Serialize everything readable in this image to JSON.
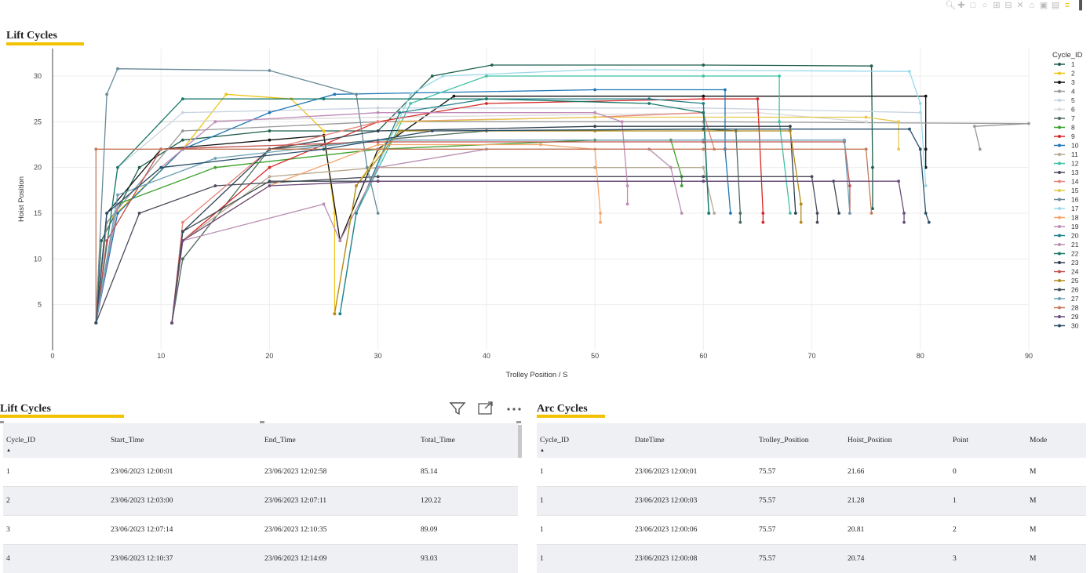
{
  "chart": {
    "title": "Lift Cycles",
    "legend_title": "Cycle_ID",
    "x_axis_title": "Trolley Position / S",
    "y_axis_title": "Hoist Position",
    "x_ticks": [
      "0",
      "10",
      "20",
      "30",
      "40",
      "50",
      "60",
      "70",
      "80",
      "90"
    ],
    "y_ticks": [
      "5",
      "10",
      "15",
      "20",
      "25",
      "30"
    ],
    "modebar_icons": [
      "zoom-icon",
      "pan-icon",
      "box-select-icon",
      "lasso-icon",
      "zoom-in-icon",
      "zoom-out-icon",
      "autoscale-icon",
      "reset-axes-icon",
      "camera-icon",
      "compare-icon",
      "spike-icon",
      "logo-icon"
    ]
  },
  "chart_data": {
    "type": "line",
    "title": "Lift Cycles",
    "xlabel": "Trolley Position / S",
    "ylabel": "Hoist Position",
    "xlim": [
      0,
      90
    ],
    "ylim": [
      0,
      33
    ],
    "legend_title": "Cycle_ID",
    "legend_position": "right",
    "grid": true,
    "series": [
      {
        "name": "1",
        "color": "#1f5f4f",
        "values": [
          [
            4,
            3
          ],
          [
            4.5,
            12
          ],
          [
            8,
            20
          ],
          [
            12,
            23
          ],
          [
            20,
            24
          ],
          [
            30,
            24
          ],
          [
            35,
            30
          ],
          [
            40.5,
            31.2
          ],
          [
            60,
            31.2
          ],
          [
            75.5,
            31.1
          ],
          [
            75.6,
            20
          ],
          [
            75.6,
            15.5
          ]
        ]
      },
      {
        "name": "2",
        "color": "#f0c419",
        "values": [
          [
            4,
            3
          ],
          [
            5,
            14
          ],
          [
            12,
            22
          ],
          [
            16,
            28
          ],
          [
            22,
            27.5
          ],
          [
            25,
            24
          ],
          [
            26,
            15
          ],
          [
            26,
            4
          ]
        ]
      },
      {
        "name": "3",
        "color": "#111111",
        "values": [
          [
            4,
            3
          ],
          [
            5,
            15
          ],
          [
            10,
            22
          ],
          [
            20,
            23
          ],
          [
            25,
            23.5
          ],
          [
            26.5,
            12
          ],
          [
            30,
            22
          ],
          [
            37,
            27.8
          ],
          [
            60,
            27.8
          ],
          [
            80.5,
            27.8
          ],
          [
            80.5,
            22
          ],
          [
            80.5,
            20
          ]
        ]
      },
      {
        "name": "4",
        "color": "#999999",
        "values": [
          [
            4,
            3
          ],
          [
            5,
            14
          ],
          [
            12,
            24
          ],
          [
            30,
            25
          ],
          [
            60,
            25
          ],
          [
            90,
            24.8
          ],
          [
            85,
            24.5
          ],
          [
            85.5,
            22
          ]
        ]
      },
      {
        "name": "5",
        "color": "#c9d3e0",
        "values": [
          [
            4,
            3
          ],
          [
            6,
            20
          ],
          [
            12,
            26
          ],
          [
            30,
            26.5
          ],
          [
            60,
            26.5
          ],
          [
            80,
            26
          ]
        ]
      },
      {
        "name": "6",
        "color": "#d9d9d9",
        "values": [
          [
            4,
            3
          ],
          [
            6,
            20
          ],
          [
            10,
            25
          ],
          [
            30,
            25.5
          ],
          [
            65,
            26
          ],
          [
            75,
            25
          ]
        ]
      },
      {
        "name": "7",
        "color": "#4d6b5a",
        "values": [
          [
            11,
            3
          ],
          [
            12,
            10
          ],
          [
            20,
            22
          ],
          [
            40,
            24
          ],
          [
            60,
            24.2
          ],
          [
            63,
            24
          ],
          [
            63.4,
            15
          ],
          [
            63.4,
            14
          ]
        ]
      },
      {
        "name": "8",
        "color": "#3aa02a",
        "values": [
          [
            4,
            3
          ],
          [
            6,
            16
          ],
          [
            15,
            20
          ],
          [
            30,
            22
          ],
          [
            50,
            23
          ],
          [
            57,
            23
          ],
          [
            58,
            19
          ],
          [
            58,
            18
          ]
        ]
      },
      {
        "name": "9",
        "color": "#d62728",
        "values": [
          [
            11,
            3
          ],
          [
            12,
            12
          ],
          [
            20,
            20
          ],
          [
            30,
            25
          ],
          [
            40,
            27
          ],
          [
            60,
            27.5
          ],
          [
            65,
            27.5
          ],
          [
            65.5,
            15
          ],
          [
            65.5,
            14
          ]
        ]
      },
      {
        "name": "10",
        "color": "#1f77b4",
        "values": [
          [
            4,
            3
          ],
          [
            6,
            15
          ],
          [
            12,
            22
          ],
          [
            20,
            26
          ],
          [
            26,
            28
          ],
          [
            50,
            28.5
          ],
          [
            62,
            28.5
          ],
          [
            62,
            22
          ],
          [
            62.5,
            15
          ]
        ]
      },
      {
        "name": "11",
        "color": "#b6a88f",
        "values": [
          [
            11,
            3
          ],
          [
            12,
            12
          ],
          [
            20,
            19
          ],
          [
            30,
            20
          ],
          [
            50,
            20
          ],
          [
            60,
            20
          ],
          [
            61,
            15
          ]
        ]
      },
      {
        "name": "12",
        "color": "#3fc1a5",
        "values": [
          [
            26.5,
            4
          ],
          [
            28,
            15
          ],
          [
            33,
            27
          ],
          [
            40,
            30
          ],
          [
            60,
            30
          ],
          [
            67,
            30
          ],
          [
            67,
            25
          ],
          [
            68,
            15
          ]
        ]
      },
      {
        "name": "13",
        "color": "#4a4a5a",
        "values": [
          [
            4,
            3
          ],
          [
            8,
            15
          ],
          [
            15,
            18
          ],
          [
            30,
            19
          ],
          [
            60,
            19
          ],
          [
            70,
            19
          ],
          [
            70.5,
            15
          ],
          [
            70.5,
            14
          ]
        ]
      },
      {
        "name": "14",
        "color": "#e8857a",
        "values": [
          [
            11,
            3
          ],
          [
            12,
            14
          ],
          [
            20,
            22
          ],
          [
            30,
            25
          ],
          [
            50,
            25.5
          ],
          [
            60,
            26
          ],
          [
            61,
            22
          ]
        ]
      },
      {
        "name": "15",
        "color": "#e6c84a",
        "values": [
          [
            26,
            4
          ],
          [
            28,
            18
          ],
          [
            32,
            25
          ],
          [
            50,
            25.5
          ],
          [
            75,
            25.5
          ],
          [
            78,
            25
          ],
          [
            78,
            22
          ]
        ]
      },
      {
        "name": "16",
        "color": "#6a8a99",
        "values": [
          [
            4,
            3
          ],
          [
            5,
            28
          ],
          [
            6,
            30.8
          ],
          [
            20,
            30.6
          ],
          [
            28,
            28
          ],
          [
            29,
            20
          ],
          [
            30,
            15
          ]
        ]
      },
      {
        "name": "17",
        "color": "#9ad9ea",
        "values": [
          [
            26.5,
            4
          ],
          [
            28,
            15
          ],
          [
            33,
            28
          ],
          [
            36,
            30
          ],
          [
            50,
            30.7
          ],
          [
            79,
            30.5
          ],
          [
            80,
            27
          ],
          [
            80.5,
            18
          ]
        ]
      },
      {
        "name": "18",
        "color": "#f5a56b",
        "values": [
          [
            11,
            3
          ],
          [
            12,
            12
          ],
          [
            20,
            18
          ],
          [
            30,
            22.5
          ],
          [
            45,
            22.5
          ],
          [
            50,
            22
          ],
          [
            50.5,
            15
          ],
          [
            50.5,
            14
          ]
        ]
      },
      {
        "name": "19",
        "color": "#c08ab8",
        "values": [
          [
            4,
            3
          ],
          [
            6,
            16
          ],
          [
            15,
            25
          ],
          [
            30,
            26
          ],
          [
            50,
            26
          ],
          [
            52.5,
            25
          ],
          [
            53,
            18
          ],
          [
            53,
            16
          ]
        ]
      },
      {
        "name": "20",
        "color": "#20808a",
        "values": [
          [
            26.5,
            4
          ],
          [
            28,
            15
          ],
          [
            32,
            26
          ],
          [
            40,
            27.5
          ],
          [
            55,
            27.5
          ],
          [
            60,
            27
          ],
          [
            60.5,
            15
          ]
        ]
      },
      {
        "name": "21",
        "color": "#b88eb0",
        "values": [
          [
            11,
            3
          ],
          [
            12,
            12
          ],
          [
            25,
            16
          ],
          [
            26.5,
            12
          ],
          [
            30,
            20
          ],
          [
            40,
            22
          ],
          [
            55,
            22
          ],
          [
            57,
            20
          ],
          [
            58,
            15
          ]
        ]
      },
      {
        "name": "22",
        "color": "#177a6a",
        "values": [
          [
            4,
            3
          ],
          [
            6,
            20
          ],
          [
            12,
            27.5
          ],
          [
            25,
            27.5
          ],
          [
            40,
            27.5
          ],
          [
            55,
            27
          ],
          [
            60,
            26
          ],
          [
            60.5,
            15
          ]
        ]
      },
      {
        "name": "23",
        "color": "#2c3e50",
        "values": [
          [
            11,
            3
          ],
          [
            12,
            13
          ],
          [
            20,
            22
          ],
          [
            30,
            24
          ],
          [
            50,
            24.5
          ],
          [
            68,
            24.5
          ],
          [
            68.5,
            15
          ]
        ]
      },
      {
        "name": "24",
        "color": "#c0504d",
        "values": [
          [
            4,
            3
          ],
          [
            5,
            12
          ],
          [
            10,
            22
          ],
          [
            30,
            22.8
          ],
          [
            60,
            22.8
          ],
          [
            73,
            22.8
          ],
          [
            73.5,
            18
          ],
          [
            73.5,
            15
          ]
        ]
      },
      {
        "name": "25",
        "color": "#b08a1a",
        "values": [
          [
            26,
            4
          ],
          [
            28,
            18
          ],
          [
            32,
            24
          ],
          [
            50,
            24
          ],
          [
            68,
            24
          ],
          [
            69,
            16
          ],
          [
            69,
            14
          ]
        ]
      },
      {
        "name": "26",
        "color": "#3e4a50",
        "values": [
          [
            11,
            3
          ],
          [
            12,
            13
          ],
          [
            20,
            18.5
          ],
          [
            30,
            18.5
          ],
          [
            60,
            18.5
          ],
          [
            72,
            18.5
          ],
          [
            72.5,
            15
          ]
        ]
      },
      {
        "name": "27",
        "color": "#6aa0b5",
        "values": [
          [
            4,
            3
          ],
          [
            6,
            17
          ],
          [
            15,
            21
          ],
          [
            30,
            23
          ],
          [
            60,
            23
          ],
          [
            73,
            23
          ],
          [
            73.5,
            15
          ]
        ]
      },
      {
        "name": "28",
        "color": "#c47a5a",
        "values": [
          [
            4,
            3
          ],
          [
            4,
            22
          ],
          [
            10,
            22
          ],
          [
            30,
            22
          ],
          [
            60,
            22
          ],
          [
            75,
            22
          ],
          [
            75.5,
            15
          ]
        ]
      },
      {
        "name": "29",
        "color": "#6b4a7a",
        "values": [
          [
            11,
            3
          ],
          [
            12,
            12
          ],
          [
            20,
            18
          ],
          [
            30,
            18.5
          ],
          [
            60,
            18.5
          ],
          [
            78,
            18.5
          ],
          [
            78.5,
            15
          ],
          [
            78.5,
            14
          ]
        ]
      },
      {
        "name": "30",
        "color": "#2a4f6a",
        "values": [
          [
            4,
            3
          ],
          [
            5,
            15
          ],
          [
            10,
            20
          ],
          [
            25,
            22
          ],
          [
            35,
            24
          ],
          [
            60,
            24.2
          ],
          [
            79,
            24.2
          ],
          [
            80,
            22
          ],
          [
            80.5,
            15
          ],
          [
            80.8,
            14
          ]
        ]
      }
    ]
  },
  "left_table": {
    "title": "Lift Cycles",
    "columns": [
      "Cycle_ID",
      "Start_Time",
      "End_Time",
      "Total_Time"
    ],
    "rows": [
      [
        "1",
        "23/06/2023 12:00:01",
        "23/06/2023 12:02:58",
        "85.14"
      ],
      [
        "2",
        "23/06/2023 12:03:00",
        "23/06/2023 12:07:11",
        "120.22"
      ],
      [
        "3",
        "23/06/2023 12:07:14",
        "23/06/2023 12:10:35",
        "89.09"
      ],
      [
        "4",
        "23/06/2023 12:10:37",
        "23/06/2023 12:14:09",
        "93.03"
      ]
    ]
  },
  "right_table": {
    "title": "Arc Cycles",
    "columns": [
      "Cycle_ID",
      "DateTime",
      "Trolley_Position",
      "Hoist_Position",
      "Point",
      "Mode"
    ],
    "rows": [
      [
        "1",
        "23/06/2023 12:00:01",
        "75.57",
        "21.66",
        "0",
        "M"
      ],
      [
        "1",
        "23/06/2023 12:00:03",
        "75.57",
        "21.28",
        "1",
        "M"
      ],
      [
        "1",
        "23/06/2023 12:00:06",
        "75.57",
        "20.81",
        "2",
        "M"
      ],
      [
        "1",
        "23/06/2023 12:00:08",
        "75.57",
        "20.74",
        "3",
        "M"
      ]
    ]
  },
  "visual_header": {
    "filter_icon": "filter-icon",
    "focus_icon": "focus-mode-icon",
    "more_icon": "more-options-icon"
  }
}
